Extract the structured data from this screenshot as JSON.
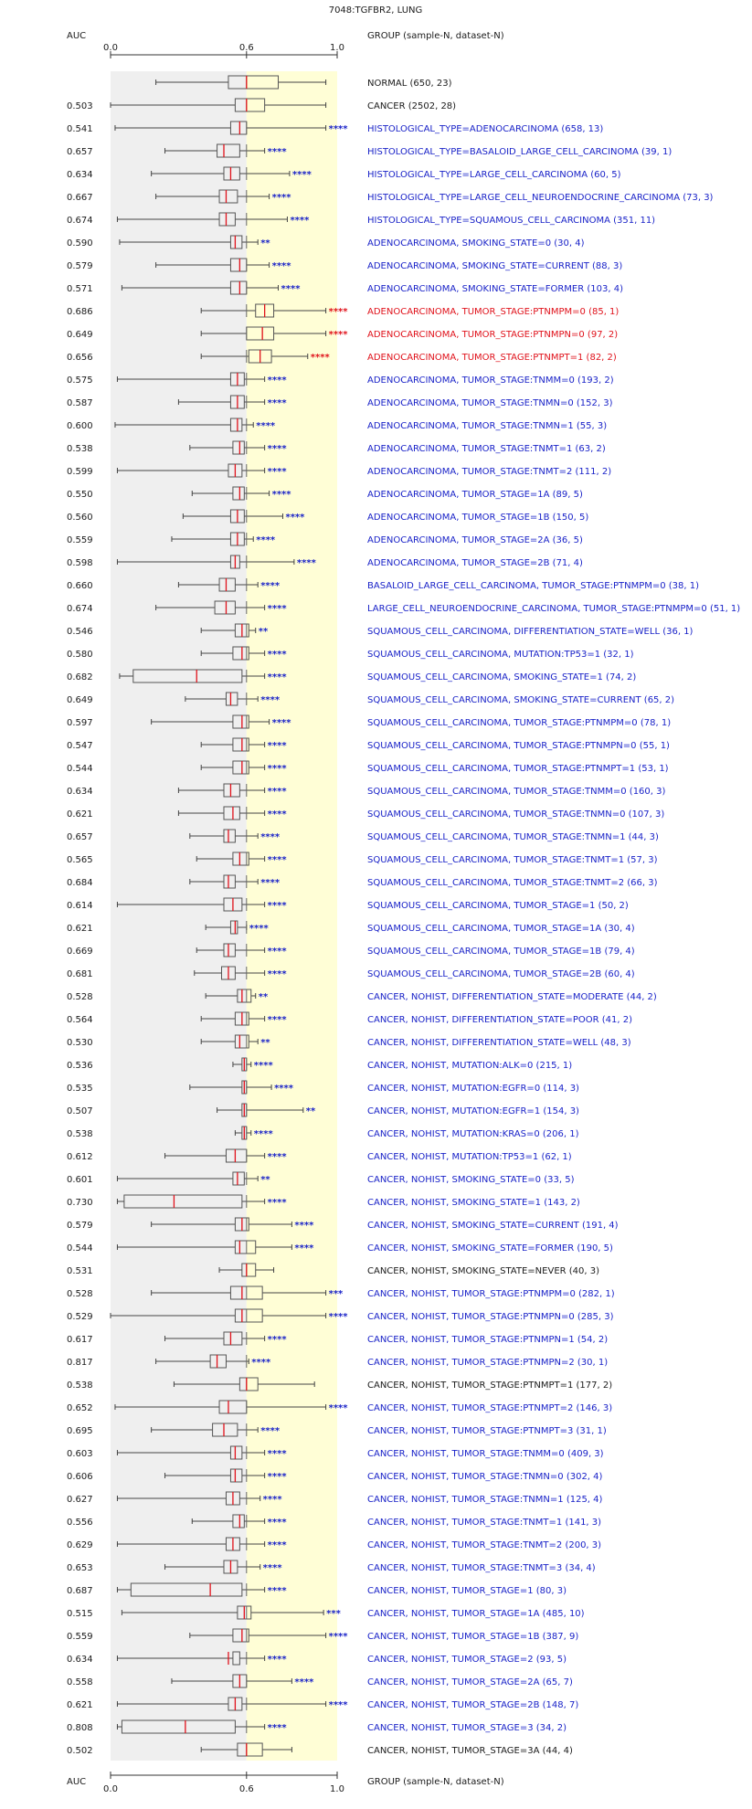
{
  "chart_data": {
    "type": "box",
    "title": "7048:TGFBR2, LUNG",
    "auc_header": "AUC",
    "group_header": "GROUP (sample-N, dataset-N)",
    "xlim": [
      0,
      1
    ],
    "ticks": [
      0.0,
      0.6,
      1.0
    ],
    "tick_labels": [
      "0.0",
      "0.6",
      "1.0"
    ],
    "colors": {
      "normal_region": "#efefef",
      "upper_region": "#fffed6",
      "median": "#e0121b",
      "up_label": "#1a23c8",
      "down_label": "#e0121b",
      "neutral_label": "#1a1a1a",
      "box_stroke": "#555555"
    },
    "rows": [
      {
        "auc": "",
        "label": "NORMAL (650, 23)",
        "sig": "",
        "color": "neutral",
        "stats": [
          0.2,
          0.52,
          0.6,
          0.74,
          0.95
        ]
      },
      {
        "auc": "0.503",
        "label": "CANCER (2502, 28)",
        "sig": "",
        "color": "neutral",
        "stats": [
          0.0,
          0.55,
          0.6,
          0.68,
          0.95
        ]
      },
      {
        "auc": "0.541",
        "label": "HISTOLOGICAL_TYPE=ADENOCARCINOMA (658, 13)",
        "sig": "****",
        "color": "up",
        "stats": [
          0.02,
          0.53,
          0.57,
          0.6,
          0.95
        ]
      },
      {
        "auc": "0.657",
        "label": "HISTOLOGICAL_TYPE=BASALOID_LARGE_CELL_CARCINOMA (39, 1)",
        "sig": "****",
        "color": "up",
        "stats": [
          0.24,
          0.47,
          0.5,
          0.57,
          0.68
        ]
      },
      {
        "auc": "0.634",
        "label": "HISTOLOGICAL_TYPE=LARGE_CELL_CARCINOMA (60, 5)",
        "sig": "****",
        "color": "up",
        "stats": [
          0.18,
          0.5,
          0.53,
          0.57,
          0.79
        ]
      },
      {
        "auc": "0.667",
        "label": "HISTOLOGICAL_TYPE=LARGE_CELL_NEUROENDOCRINE_CARCINOMA (73, 3)",
        "sig": "****",
        "color": "up",
        "stats": [
          0.2,
          0.48,
          0.51,
          0.56,
          0.7
        ]
      },
      {
        "auc": "0.674",
        "label": "HISTOLOGICAL_TYPE=SQUAMOUS_CELL_CARCINOMA (351, 11)",
        "sig": "****",
        "color": "up",
        "stats": [
          0.03,
          0.48,
          0.51,
          0.55,
          0.78
        ]
      },
      {
        "auc": "0.590",
        "label": "ADENOCARCINOMA, SMOKING_STATE=0 (30, 4)",
        "sig": "**",
        "color": "up",
        "stats": [
          0.04,
          0.53,
          0.55,
          0.58,
          0.65
        ]
      },
      {
        "auc": "0.579",
        "label": "ADENOCARCINOMA, SMOKING_STATE=CURRENT (88, 3)",
        "sig": "****",
        "color": "up",
        "stats": [
          0.2,
          0.53,
          0.57,
          0.6,
          0.7
        ]
      },
      {
        "auc": "0.571",
        "label": "ADENOCARCINOMA, SMOKING_STATE=FORMER (103, 4)",
        "sig": "****",
        "color": "up",
        "stats": [
          0.05,
          0.53,
          0.57,
          0.6,
          0.74
        ]
      },
      {
        "auc": "0.686",
        "label": "ADENOCARCINOMA, TUMOR_STAGE:PTNMPM=0 (85, 1)",
        "sig": "****",
        "color": "down",
        "stats": [
          0.4,
          0.64,
          0.68,
          0.72,
          0.95
        ]
      },
      {
        "auc": "0.649",
        "label": "ADENOCARCINOMA, TUMOR_STAGE:PTNMPN=0 (97, 2)",
        "sig": "****",
        "color": "down",
        "stats": [
          0.4,
          0.6,
          0.67,
          0.72,
          0.95
        ]
      },
      {
        "auc": "0.656",
        "label": "ADENOCARCINOMA, TUMOR_STAGE:PTNMPT=1 (82, 2)",
        "sig": "****",
        "color": "down",
        "stats": [
          0.4,
          0.61,
          0.66,
          0.71,
          0.87
        ]
      },
      {
        "auc": "0.575",
        "label": "ADENOCARCINOMA, TUMOR_STAGE:TNMM=0 (193, 2)",
        "sig": "****",
        "color": "up",
        "stats": [
          0.03,
          0.53,
          0.56,
          0.59,
          0.68
        ]
      },
      {
        "auc": "0.587",
        "label": "ADENOCARCINOMA, TUMOR_STAGE:TNMN=0 (152, 3)",
        "sig": "****",
        "color": "up",
        "stats": [
          0.3,
          0.53,
          0.56,
          0.59,
          0.68
        ]
      },
      {
        "auc": "0.600",
        "label": "ADENOCARCINOMA, TUMOR_STAGE:TNMN=1 (55, 3)",
        "sig": "****",
        "color": "up",
        "stats": [
          0.02,
          0.53,
          0.56,
          0.58,
          0.63
        ]
      },
      {
        "auc": "0.538",
        "label": "ADENOCARCINOMA, TUMOR_STAGE:TNMT=1 (63, 2)",
        "sig": "****",
        "color": "up",
        "stats": [
          0.35,
          0.54,
          0.57,
          0.59,
          0.68
        ]
      },
      {
        "auc": "0.599",
        "label": "ADENOCARCINOMA, TUMOR_STAGE:TNMT=2 (111, 2)",
        "sig": "****",
        "color": "up",
        "stats": [
          0.03,
          0.52,
          0.55,
          0.58,
          0.68
        ]
      },
      {
        "auc": "0.550",
        "label": "ADENOCARCINOMA, TUMOR_STAGE=1A (89, 5)",
        "sig": "****",
        "color": "up",
        "stats": [
          0.36,
          0.54,
          0.57,
          0.59,
          0.7
        ]
      },
      {
        "auc": "0.560",
        "label": "ADENOCARCINOMA, TUMOR_STAGE=1B (150, 5)",
        "sig": "****",
        "color": "up",
        "stats": [
          0.32,
          0.53,
          0.56,
          0.59,
          0.76
        ]
      },
      {
        "auc": "0.559",
        "label": "ADENOCARCINOMA, TUMOR_STAGE=2A (36, 5)",
        "sig": "****",
        "color": "up",
        "stats": [
          0.27,
          0.53,
          0.56,
          0.59,
          0.63
        ]
      },
      {
        "auc": "0.598",
        "label": "ADENOCARCINOMA, TUMOR_STAGE=2B (71, 4)",
        "sig": "****",
        "color": "up",
        "stats": [
          0.03,
          0.53,
          0.55,
          0.57,
          0.81
        ]
      },
      {
        "auc": "0.660",
        "label": "BASALOID_LARGE_CELL_CARCINOMA, TUMOR_STAGE:PTNMPM=0 (38, 1)",
        "sig": "****",
        "color": "up",
        "stats": [
          0.3,
          0.48,
          0.51,
          0.55,
          0.65
        ]
      },
      {
        "auc": "0.674",
        "label": "LARGE_CELL_NEUROENDOCRINE_CARCINOMA, TUMOR_STAGE:PTNMPM=0 (51, 1)",
        "sig": "****",
        "color": "up",
        "stats": [
          0.2,
          0.46,
          0.51,
          0.55,
          0.68
        ]
      },
      {
        "auc": "0.546",
        "label": "SQUAMOUS_CELL_CARCINOMA, DIFFERENTIATION_STATE=WELL (36, 1)",
        "sig": "**",
        "color": "up",
        "stats": [
          0.4,
          0.55,
          0.58,
          0.61,
          0.64
        ]
      },
      {
        "auc": "0.580",
        "label": "SQUAMOUS_CELL_CARCINOMA, MUTATION:TP53=1 (32, 1)",
        "sig": "****",
        "color": "up",
        "stats": [
          0.4,
          0.54,
          0.58,
          0.61,
          0.68
        ]
      },
      {
        "auc": "0.682",
        "label": "SQUAMOUS_CELL_CARCINOMA, SMOKING_STATE=1 (74, 2)",
        "sig": "****",
        "color": "up",
        "stats": [
          0.04,
          0.1,
          0.38,
          0.58,
          0.68
        ]
      },
      {
        "auc": "0.649",
        "label": "SQUAMOUS_CELL_CARCINOMA, SMOKING_STATE=CURRENT (65, 2)",
        "sig": "****",
        "color": "up",
        "stats": [
          0.33,
          0.51,
          0.53,
          0.56,
          0.65
        ]
      },
      {
        "auc": "0.597",
        "label": "SQUAMOUS_CELL_CARCINOMA, TUMOR_STAGE:PTNMPM=0 (78, 1)",
        "sig": "****",
        "color": "up",
        "stats": [
          0.18,
          0.54,
          0.58,
          0.61,
          0.7
        ]
      },
      {
        "auc": "0.547",
        "label": "SQUAMOUS_CELL_CARCINOMA, TUMOR_STAGE:PTNMPN=0 (55, 1)",
        "sig": "****",
        "color": "up",
        "stats": [
          0.4,
          0.54,
          0.58,
          0.61,
          0.68
        ]
      },
      {
        "auc": "0.544",
        "label": "SQUAMOUS_CELL_CARCINOMA, TUMOR_STAGE:PTNMPT=1 (53, 1)",
        "sig": "****",
        "color": "up",
        "stats": [
          0.4,
          0.54,
          0.58,
          0.61,
          0.68
        ]
      },
      {
        "auc": "0.634",
        "label": "SQUAMOUS_CELL_CARCINOMA, TUMOR_STAGE:TNMM=0 (160, 3)",
        "sig": "****",
        "color": "up",
        "stats": [
          0.3,
          0.5,
          0.53,
          0.57,
          0.68
        ]
      },
      {
        "auc": "0.621",
        "label": "SQUAMOUS_CELL_CARCINOMA, TUMOR_STAGE:TNMN=0 (107, 3)",
        "sig": "****",
        "color": "up",
        "stats": [
          0.3,
          0.5,
          0.54,
          0.57,
          0.68
        ]
      },
      {
        "auc": "0.657",
        "label": "SQUAMOUS_CELL_CARCINOMA, TUMOR_STAGE:TNMN=1 (44, 3)",
        "sig": "****",
        "color": "up",
        "stats": [
          0.35,
          0.5,
          0.52,
          0.55,
          0.65
        ]
      },
      {
        "auc": "0.565",
        "label": "SQUAMOUS_CELL_CARCINOMA, TUMOR_STAGE:TNMT=1 (57, 3)",
        "sig": "****",
        "color": "up",
        "stats": [
          0.38,
          0.54,
          0.57,
          0.61,
          0.68
        ]
      },
      {
        "auc": "0.684",
        "label": "SQUAMOUS_CELL_CARCINOMA, TUMOR_STAGE:TNMT=2 (66, 3)",
        "sig": "****",
        "color": "up",
        "stats": [
          0.35,
          0.5,
          0.52,
          0.55,
          0.65
        ]
      },
      {
        "auc": "0.614",
        "label": "SQUAMOUS_CELL_CARCINOMA, TUMOR_STAGE=1 (50, 2)",
        "sig": "****",
        "color": "up",
        "stats": [
          0.03,
          0.5,
          0.54,
          0.58,
          0.68
        ]
      },
      {
        "auc": "0.621",
        "label": "SQUAMOUS_CELL_CARCINOMA, TUMOR_STAGE=1A (30, 4)",
        "sig": "****",
        "color": "up",
        "stats": [
          0.42,
          0.53,
          0.55,
          0.56,
          0.6
        ]
      },
      {
        "auc": "0.669",
        "label": "SQUAMOUS_CELL_CARCINOMA, TUMOR_STAGE=1B (79, 4)",
        "sig": "****",
        "color": "up",
        "stats": [
          0.38,
          0.5,
          0.52,
          0.55,
          0.68
        ]
      },
      {
        "auc": "0.681",
        "label": "SQUAMOUS_CELL_CARCINOMA, TUMOR_STAGE=2B (60, 4)",
        "sig": "****",
        "color": "up",
        "stats": [
          0.37,
          0.49,
          0.52,
          0.55,
          0.68
        ]
      },
      {
        "auc": "0.528",
        "label": "CANCER, NOHIST, DIFFERENTIATION_STATE=MODERATE (44, 2)",
        "sig": "**",
        "color": "up",
        "stats": [
          0.42,
          0.56,
          0.58,
          0.62,
          0.64
        ]
      },
      {
        "auc": "0.564",
        "label": "CANCER, NOHIST, DIFFERENTIATION_STATE=POOR (41, 2)",
        "sig": "****",
        "color": "up",
        "stats": [
          0.4,
          0.55,
          0.58,
          0.61,
          0.68
        ]
      },
      {
        "auc": "0.530",
        "label": "CANCER, NOHIST, DIFFERENTIATION_STATE=WELL (48, 3)",
        "sig": "**",
        "color": "up",
        "stats": [
          0.4,
          0.55,
          0.57,
          0.61,
          0.65
        ]
      },
      {
        "auc": "0.536",
        "label": "CANCER, NOHIST, MUTATION:ALK=0 (215, 1)",
        "sig": "****",
        "color": "up",
        "stats": [
          0.54,
          0.58,
          0.59,
          0.6,
          0.62
        ]
      },
      {
        "auc": "0.535",
        "label": "CANCER, NOHIST, MUTATION:EGFR=0 (114, 3)",
        "sig": "****",
        "color": "up",
        "stats": [
          0.35,
          0.58,
          0.59,
          0.6,
          0.71
        ]
      },
      {
        "auc": "0.507",
        "label": "CANCER, NOHIST, MUTATION:EGFR=1 (154, 3)",
        "sig": "**",
        "color": "up",
        "stats": [
          0.47,
          0.58,
          0.59,
          0.6,
          0.85
        ]
      },
      {
        "auc": "0.538",
        "label": "CANCER, NOHIST, MUTATION:KRAS=0 (206, 1)",
        "sig": "****",
        "color": "up",
        "stats": [
          0.55,
          0.58,
          0.59,
          0.6,
          0.62
        ]
      },
      {
        "auc": "0.612",
        "label": "CANCER, NOHIST, MUTATION:TP53=1 (62, 1)",
        "sig": "****",
        "color": "up",
        "stats": [
          0.24,
          0.51,
          0.55,
          0.6,
          0.68
        ]
      },
      {
        "auc": "0.601",
        "label": "CANCER, NOHIST, SMOKING_STATE=0 (33, 5)",
        "sig": "**",
        "color": "up",
        "stats": [
          0.03,
          0.54,
          0.56,
          0.59,
          0.65
        ]
      },
      {
        "auc": "0.730",
        "label": "CANCER, NOHIST, SMOKING_STATE=1 (143, 2)",
        "sig": "****",
        "color": "up",
        "stats": [
          0.03,
          0.06,
          0.28,
          0.58,
          0.68
        ]
      },
      {
        "auc": "0.579",
        "label": "CANCER, NOHIST, SMOKING_STATE=CURRENT (191, 4)",
        "sig": "****",
        "color": "up",
        "stats": [
          0.18,
          0.55,
          0.58,
          0.61,
          0.8
        ]
      },
      {
        "auc": "0.544",
        "label": "CANCER, NOHIST, SMOKING_STATE=FORMER (190, 5)",
        "sig": "****",
        "color": "up",
        "stats": [
          0.03,
          0.55,
          0.57,
          0.64,
          0.8
        ]
      },
      {
        "auc": "0.531",
        "label": "CANCER, NOHIST, SMOKING_STATE=NEVER (40, 3)",
        "sig": "",
        "color": "neutral",
        "stats": [
          0.48,
          0.58,
          0.6,
          0.64,
          0.72
        ]
      },
      {
        "auc": "0.528",
        "label": "CANCER, NOHIST, TUMOR_STAGE:PTNMPM=0 (282, 1)",
        "sig": "***",
        "color": "up",
        "stats": [
          0.18,
          0.53,
          0.58,
          0.67,
          0.95
        ]
      },
      {
        "auc": "0.529",
        "label": "CANCER, NOHIST, TUMOR_STAGE:PTNMPN=0 (285, 3)",
        "sig": "****",
        "color": "up",
        "stats": [
          0.0,
          0.55,
          0.58,
          0.67,
          0.95
        ]
      },
      {
        "auc": "0.617",
        "label": "CANCER, NOHIST, TUMOR_STAGE:PTNMPN=1 (54, 2)",
        "sig": "****",
        "color": "up",
        "stats": [
          0.24,
          0.5,
          0.53,
          0.58,
          0.68
        ]
      },
      {
        "auc": "0.817",
        "label": "CANCER, NOHIST, TUMOR_STAGE:PTNMPN=2 (30, 1)",
        "sig": "****",
        "color": "up",
        "stats": [
          0.2,
          0.44,
          0.47,
          0.51,
          0.61
        ]
      },
      {
        "auc": "0.538",
        "label": "CANCER, NOHIST, TUMOR_STAGE:PTNMPT=1 (177, 2)",
        "sig": "",
        "color": "neutral",
        "stats": [
          0.28,
          0.57,
          0.6,
          0.65,
          0.9
        ]
      },
      {
        "auc": "0.652",
        "label": "CANCER, NOHIST, TUMOR_STAGE:PTNMPT=2 (146, 3)",
        "sig": "****",
        "color": "up",
        "stats": [
          0.02,
          0.48,
          0.52,
          0.6,
          0.95
        ]
      },
      {
        "auc": "0.695",
        "label": "CANCER, NOHIST, TUMOR_STAGE:PTNMPT=3 (31, 1)",
        "sig": "****",
        "color": "up",
        "stats": [
          0.18,
          0.45,
          0.5,
          0.56,
          0.65
        ]
      },
      {
        "auc": "0.603",
        "label": "CANCER, NOHIST, TUMOR_STAGE:TNMM=0 (409, 3)",
        "sig": "****",
        "color": "up",
        "stats": [
          0.03,
          0.53,
          0.55,
          0.58,
          0.68
        ]
      },
      {
        "auc": "0.606",
        "label": "CANCER, NOHIST, TUMOR_STAGE:TNMN=0 (302, 4)",
        "sig": "****",
        "color": "up",
        "stats": [
          0.24,
          0.53,
          0.55,
          0.58,
          0.68
        ]
      },
      {
        "auc": "0.627",
        "label": "CANCER, NOHIST, TUMOR_STAGE:TNMN=1 (125, 4)",
        "sig": "****",
        "color": "up",
        "stats": [
          0.03,
          0.51,
          0.54,
          0.57,
          0.66
        ]
      },
      {
        "auc": "0.556",
        "label": "CANCER, NOHIST, TUMOR_STAGE:TNMT=1 (141, 3)",
        "sig": "****",
        "color": "up",
        "stats": [
          0.36,
          0.54,
          0.57,
          0.59,
          0.68
        ]
      },
      {
        "auc": "0.629",
        "label": "CANCER, NOHIST, TUMOR_STAGE:TNMT=2 (200, 3)",
        "sig": "****",
        "color": "up",
        "stats": [
          0.03,
          0.51,
          0.54,
          0.57,
          0.68
        ]
      },
      {
        "auc": "0.653",
        "label": "CANCER, NOHIST, TUMOR_STAGE:TNMT=3 (34, 4)",
        "sig": "****",
        "color": "up",
        "stats": [
          0.24,
          0.5,
          0.53,
          0.56,
          0.66
        ]
      },
      {
        "auc": "0.687",
        "label": "CANCER, NOHIST, TUMOR_STAGE=1 (80, 3)",
        "sig": "****",
        "color": "up",
        "stats": [
          0.03,
          0.09,
          0.44,
          0.58,
          0.68
        ]
      },
      {
        "auc": "0.515",
        "label": "CANCER, NOHIST, TUMOR_STAGE=1A (485, 10)",
        "sig": "***",
        "color": "up",
        "stats": [
          0.05,
          0.56,
          0.59,
          0.62,
          0.94
        ]
      },
      {
        "auc": "0.559",
        "label": "CANCER, NOHIST, TUMOR_STAGE=1B (387, 9)",
        "sig": "****",
        "color": "up",
        "stats": [
          0.35,
          0.54,
          0.58,
          0.61,
          0.95
        ]
      },
      {
        "auc": "0.634",
        "label": "CANCER, NOHIST, TUMOR_STAGE=2 (93, 5)",
        "sig": "****",
        "color": "up",
        "stats": [
          0.03,
          0.54,
          0.52,
          0.57,
          0.68
        ]
      },
      {
        "auc": "0.558",
        "label": "CANCER, NOHIST, TUMOR_STAGE=2A (65, 7)",
        "sig": "****",
        "color": "up",
        "stats": [
          0.27,
          0.54,
          0.57,
          0.6,
          0.8
        ]
      },
      {
        "auc": "0.621",
        "label": "CANCER, NOHIST, TUMOR_STAGE=2B (148, 7)",
        "sig": "****",
        "color": "up",
        "stats": [
          0.03,
          0.52,
          0.55,
          0.58,
          0.95
        ]
      },
      {
        "auc": "0.808",
        "label": "CANCER, NOHIST, TUMOR_STAGE=3 (34, 2)",
        "sig": "****",
        "color": "up",
        "stats": [
          0.03,
          0.05,
          0.33,
          0.55,
          0.68
        ]
      },
      {
        "auc": "0.502",
        "label": "CANCER, NOHIST, TUMOR_STAGE=3A (44, 4)",
        "sig": "",
        "color": "neutral",
        "stats": [
          0.4,
          0.56,
          0.6,
          0.67,
          0.8
        ]
      }
    ]
  }
}
